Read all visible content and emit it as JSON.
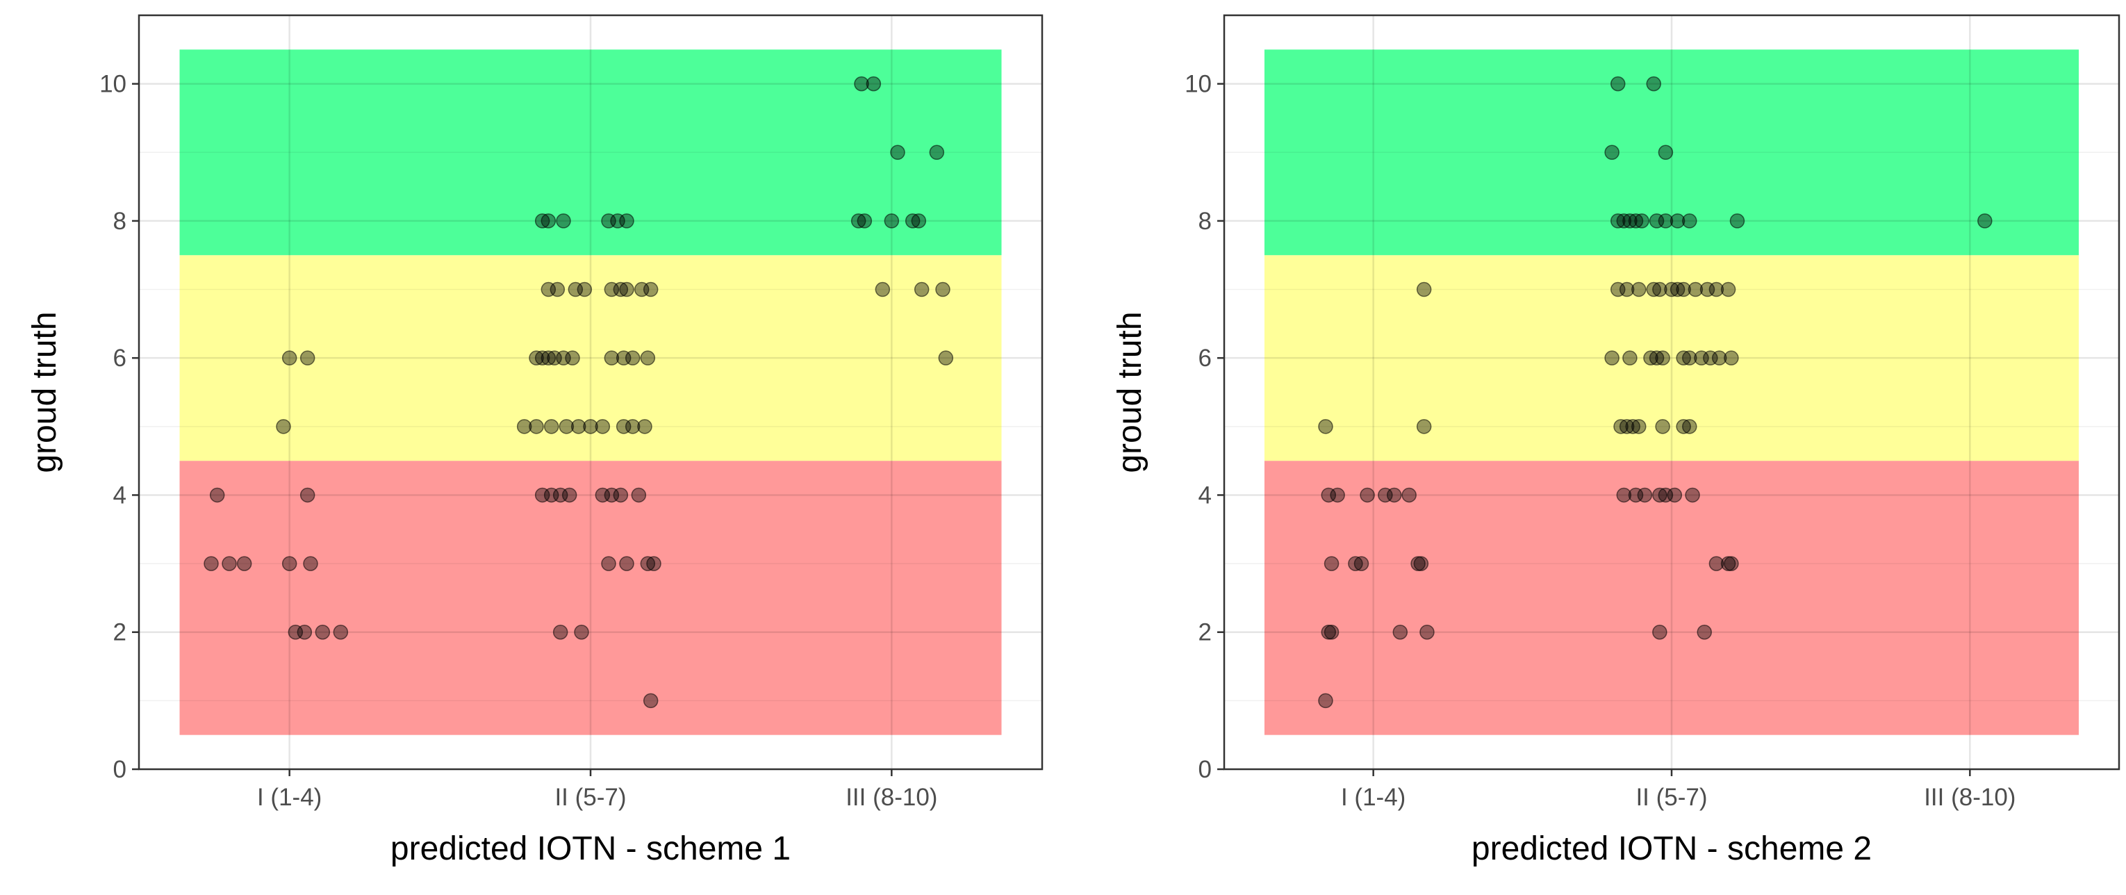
{
  "chart_data": [
    {
      "type": "scatter",
      "xlabel": "predicted IOTN - scheme 1",
      "ylabel": "groud truth",
      "categories": [
        "I (1-4)",
        "II (5-7)",
        "III (8-10)"
      ],
      "y_ticks": [
        0,
        2,
        4,
        6,
        8,
        10
      ],
      "xlim": [
        0.5,
        3.5
      ],
      "ylim": [
        0,
        11
      ],
      "grid": true,
      "bands": [
        {
          "from": 0.5,
          "to": 4.5,
          "color": "#ff9999"
        },
        {
          "from": 4.5,
          "to": 7.5,
          "color": "#ffff99"
        },
        {
          "from": 7.5,
          "to": 10.5,
          "color": "#4dff99"
        }
      ],
      "point_color": "#000000",
      "points": [
        {
          "x": 1.0,
          "y": 6
        },
        {
          "x": 1.06,
          "y": 6
        },
        {
          "x": 0.98,
          "y": 5
        },
        {
          "x": 0.76,
          "y": 4
        },
        {
          "x": 1.06,
          "y": 4
        },
        {
          "x": 0.74,
          "y": 3
        },
        {
          "x": 0.8,
          "y": 3
        },
        {
          "x": 0.85,
          "y": 3
        },
        {
          "x": 1.0,
          "y": 3
        },
        {
          "x": 1.07,
          "y": 3
        },
        {
          "x": 1.02,
          "y": 2
        },
        {
          "x": 1.05,
          "y": 2
        },
        {
          "x": 1.11,
          "y": 2
        },
        {
          "x": 1.17,
          "y": 2
        },
        {
          "x": 1.84,
          "y": 8
        },
        {
          "x": 1.86,
          "y": 8
        },
        {
          "x": 1.91,
          "y": 8
        },
        {
          "x": 2.06,
          "y": 8
        },
        {
          "x": 2.09,
          "y": 8
        },
        {
          "x": 2.12,
          "y": 8
        },
        {
          "x": 1.86,
          "y": 7
        },
        {
          "x": 1.89,
          "y": 7
        },
        {
          "x": 1.95,
          "y": 7
        },
        {
          "x": 1.98,
          "y": 7
        },
        {
          "x": 2.07,
          "y": 7
        },
        {
          "x": 2.1,
          "y": 7
        },
        {
          "x": 2.12,
          "y": 7
        },
        {
          "x": 2.17,
          "y": 7
        },
        {
          "x": 2.2,
          "y": 7
        },
        {
          "x": 1.82,
          "y": 6
        },
        {
          "x": 1.84,
          "y": 6
        },
        {
          "x": 1.86,
          "y": 6
        },
        {
          "x": 1.88,
          "y": 6
        },
        {
          "x": 1.91,
          "y": 6
        },
        {
          "x": 1.94,
          "y": 6
        },
        {
          "x": 2.07,
          "y": 6
        },
        {
          "x": 2.11,
          "y": 6
        },
        {
          "x": 2.14,
          "y": 6
        },
        {
          "x": 2.19,
          "y": 6
        },
        {
          "x": 1.78,
          "y": 5
        },
        {
          "x": 1.82,
          "y": 5
        },
        {
          "x": 1.87,
          "y": 5
        },
        {
          "x": 1.92,
          "y": 5
        },
        {
          "x": 1.96,
          "y": 5
        },
        {
          "x": 2.0,
          "y": 5
        },
        {
          "x": 2.04,
          "y": 5
        },
        {
          "x": 2.11,
          "y": 5
        },
        {
          "x": 2.14,
          "y": 5
        },
        {
          "x": 2.18,
          "y": 5
        },
        {
          "x": 1.84,
          "y": 4
        },
        {
          "x": 1.87,
          "y": 4
        },
        {
          "x": 1.9,
          "y": 4
        },
        {
          "x": 1.93,
          "y": 4
        },
        {
          "x": 2.04,
          "y": 4
        },
        {
          "x": 2.07,
          "y": 4
        },
        {
          "x": 2.1,
          "y": 4
        },
        {
          "x": 2.16,
          "y": 4
        },
        {
          "x": 2.06,
          "y": 3
        },
        {
          "x": 2.12,
          "y": 3
        },
        {
          "x": 2.19,
          "y": 3
        },
        {
          "x": 2.21,
          "y": 3
        },
        {
          "x": 1.9,
          "y": 2
        },
        {
          "x": 1.97,
          "y": 2
        },
        {
          "x": 2.2,
          "y": 1
        },
        {
          "x": 2.9,
          "y": 10
        },
        {
          "x": 2.94,
          "y": 10
        },
        {
          "x": 3.02,
          "y": 9
        },
        {
          "x": 3.15,
          "y": 9
        },
        {
          "x": 2.89,
          "y": 8
        },
        {
          "x": 2.91,
          "y": 8
        },
        {
          "x": 3.0,
          "y": 8
        },
        {
          "x": 3.07,
          "y": 8
        },
        {
          "x": 3.09,
          "y": 8
        },
        {
          "x": 2.97,
          "y": 7
        },
        {
          "x": 3.1,
          "y": 7
        },
        {
          "x": 3.17,
          "y": 7
        },
        {
          "x": 3.18,
          "y": 6
        }
      ]
    },
    {
      "type": "scatter",
      "xlabel": "predicted IOTN - scheme 2",
      "ylabel": "groud truth",
      "categories": [
        "I (1-4)",
        "II (5-7)",
        "III (8-10)"
      ],
      "y_ticks": [
        0,
        2,
        4,
        6,
        8,
        10
      ],
      "xlim": [
        0.5,
        3.5
      ],
      "ylim": [
        0,
        11
      ],
      "grid": true,
      "bands": [
        {
          "from": 0.5,
          "to": 4.5,
          "color": "#ff9999"
        },
        {
          "from": 4.5,
          "to": 7.5,
          "color": "#ffff99"
        },
        {
          "from": 7.5,
          "to": 10.5,
          "color": "#4dff99"
        }
      ],
      "point_color": "#000000",
      "points": [
        {
          "x": 1.17,
          "y": 7
        },
        {
          "x": 0.84,
          "y": 5
        },
        {
          "x": 1.17,
          "y": 5
        },
        {
          "x": 0.85,
          "y": 4
        },
        {
          "x": 0.88,
          "y": 4
        },
        {
          "x": 0.98,
          "y": 4
        },
        {
          "x": 1.04,
          "y": 4
        },
        {
          "x": 1.07,
          "y": 4
        },
        {
          "x": 1.12,
          "y": 4
        },
        {
          "x": 0.86,
          "y": 3
        },
        {
          "x": 0.94,
          "y": 3
        },
        {
          "x": 0.96,
          "y": 3
        },
        {
          "x": 1.15,
          "y": 3
        },
        {
          "x": 1.16,
          "y": 3
        },
        {
          "x": 0.85,
          "y": 2
        },
        {
          "x": 0.86,
          "y": 2
        },
        {
          "x": 1.09,
          "y": 2
        },
        {
          "x": 1.18,
          "y": 2
        },
        {
          "x": 0.84,
          "y": 1
        },
        {
          "x": 1.82,
          "y": 10
        },
        {
          "x": 1.94,
          "y": 10
        },
        {
          "x": 1.8,
          "y": 9
        },
        {
          "x": 1.98,
          "y": 9
        },
        {
          "x": 1.82,
          "y": 8
        },
        {
          "x": 1.84,
          "y": 8
        },
        {
          "x": 1.86,
          "y": 8
        },
        {
          "x": 1.88,
          "y": 8
        },
        {
          "x": 1.9,
          "y": 8
        },
        {
          "x": 1.95,
          "y": 8
        },
        {
          "x": 1.98,
          "y": 8
        },
        {
          "x": 2.02,
          "y": 8
        },
        {
          "x": 2.06,
          "y": 8
        },
        {
          "x": 2.22,
          "y": 8
        },
        {
          "x": 1.82,
          "y": 7
        },
        {
          "x": 1.85,
          "y": 7
        },
        {
          "x": 1.89,
          "y": 7
        },
        {
          "x": 1.94,
          "y": 7
        },
        {
          "x": 1.96,
          "y": 7
        },
        {
          "x": 2.0,
          "y": 7
        },
        {
          "x": 2.02,
          "y": 7
        },
        {
          "x": 2.04,
          "y": 7
        },
        {
          "x": 2.08,
          "y": 7
        },
        {
          "x": 2.12,
          "y": 7
        },
        {
          "x": 2.15,
          "y": 7
        },
        {
          "x": 2.19,
          "y": 7
        },
        {
          "x": 1.8,
          "y": 6
        },
        {
          "x": 1.86,
          "y": 6
        },
        {
          "x": 1.93,
          "y": 6
        },
        {
          "x": 1.95,
          "y": 6
        },
        {
          "x": 1.97,
          "y": 6
        },
        {
          "x": 2.04,
          "y": 6
        },
        {
          "x": 2.06,
          "y": 6
        },
        {
          "x": 2.1,
          "y": 6
        },
        {
          "x": 2.13,
          "y": 6
        },
        {
          "x": 2.16,
          "y": 6
        },
        {
          "x": 2.2,
          "y": 6
        },
        {
          "x": 1.83,
          "y": 5
        },
        {
          "x": 1.85,
          "y": 5
        },
        {
          "x": 1.87,
          "y": 5
        },
        {
          "x": 1.89,
          "y": 5
        },
        {
          "x": 1.97,
          "y": 5
        },
        {
          "x": 2.04,
          "y": 5
        },
        {
          "x": 2.06,
          "y": 5
        },
        {
          "x": 1.84,
          "y": 4
        },
        {
          "x": 1.88,
          "y": 4
        },
        {
          "x": 1.91,
          "y": 4
        },
        {
          "x": 1.96,
          "y": 4
        },
        {
          "x": 1.98,
          "y": 4
        },
        {
          "x": 2.01,
          "y": 4
        },
        {
          "x": 2.07,
          "y": 4
        },
        {
          "x": 2.15,
          "y": 3
        },
        {
          "x": 2.19,
          "y": 3
        },
        {
          "x": 2.2,
          "y": 3
        },
        {
          "x": 1.96,
          "y": 2
        },
        {
          "x": 2.11,
          "y": 2
        },
        {
          "x": 3.05,
          "y": 8
        }
      ]
    }
  ]
}
